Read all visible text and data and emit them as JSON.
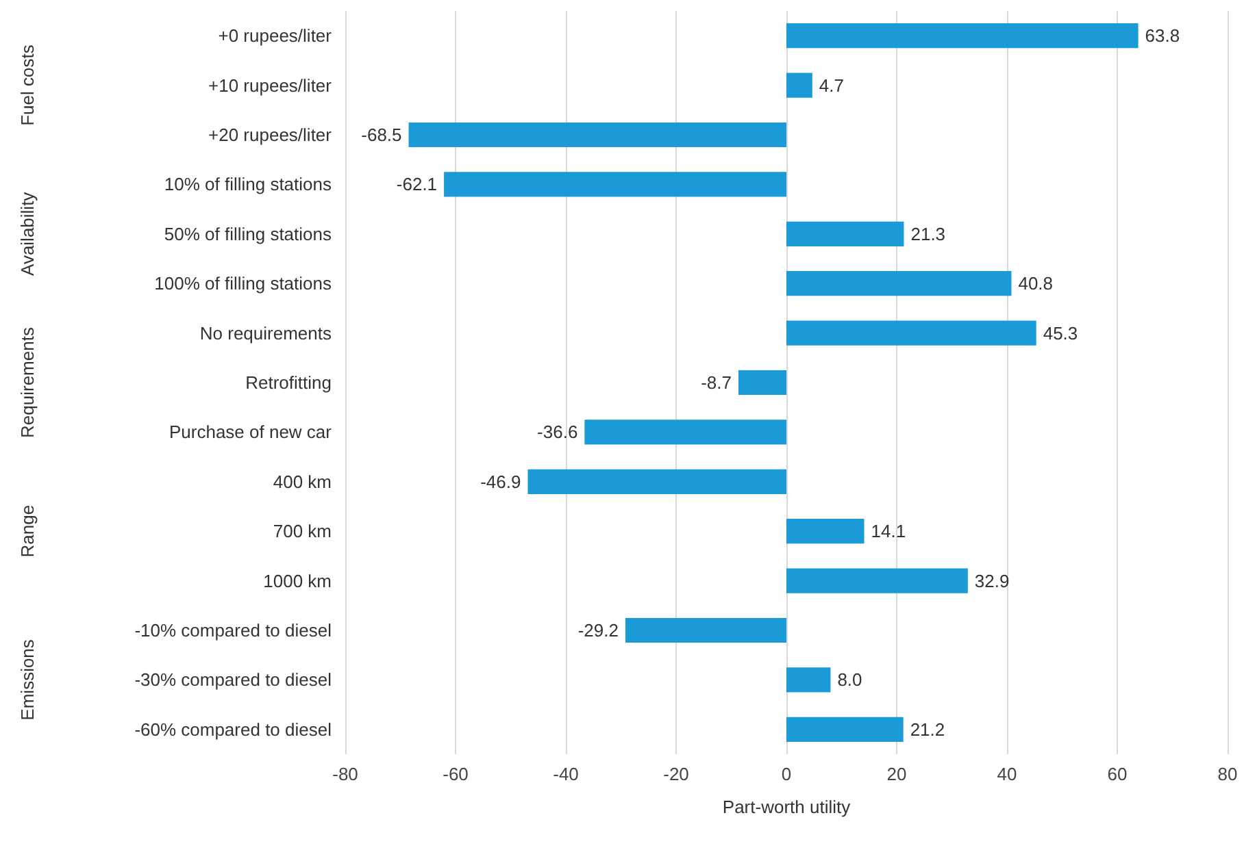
{
  "chart_data": {
    "type": "bar",
    "orientation": "horizontal",
    "xlabel": "Part-worth utility",
    "categories": [
      "+0 rupees/liter",
      "+10 rupees/liter",
      "+20 rupees/liter",
      "10% of filling stations",
      "50% of filling stations",
      "100% of filling stations",
      "No requirements",
      "Retrofitting",
      "Purchase of new car",
      "400 km",
      "700 km",
      "1000 km",
      "-10% compared to diesel",
      "-30% compared to diesel",
      "-60% compared to diesel"
    ],
    "values": [
      63.8,
      4.7,
      -68.5,
      -62.1,
      21.3,
      40.8,
      45.3,
      -8.7,
      -36.6,
      -46.9,
      14.1,
      32.9,
      -29.2,
      8.0,
      21.2
    ],
    "value_labels": [
      "63.8",
      "4.7",
      "-68.5",
      "-62.1",
      "21.3",
      "40.8",
      "45.3",
      "-8.7",
      "-36.6",
      "-46.9",
      "14.1",
      "32.9",
      "-29.2",
      "8.0",
      "21.2"
    ],
    "color": "#1a9ad6",
    "xlim": [
      -80,
      80
    ],
    "xticks": [
      -80,
      -60,
      -40,
      -20,
      0,
      20,
      40,
      60,
      80
    ],
    "grid": "x",
    "annotations": [
      "Fuel costs",
      "Availability",
      "Requirements",
      "Range",
      "Emissions"
    ]
  }
}
